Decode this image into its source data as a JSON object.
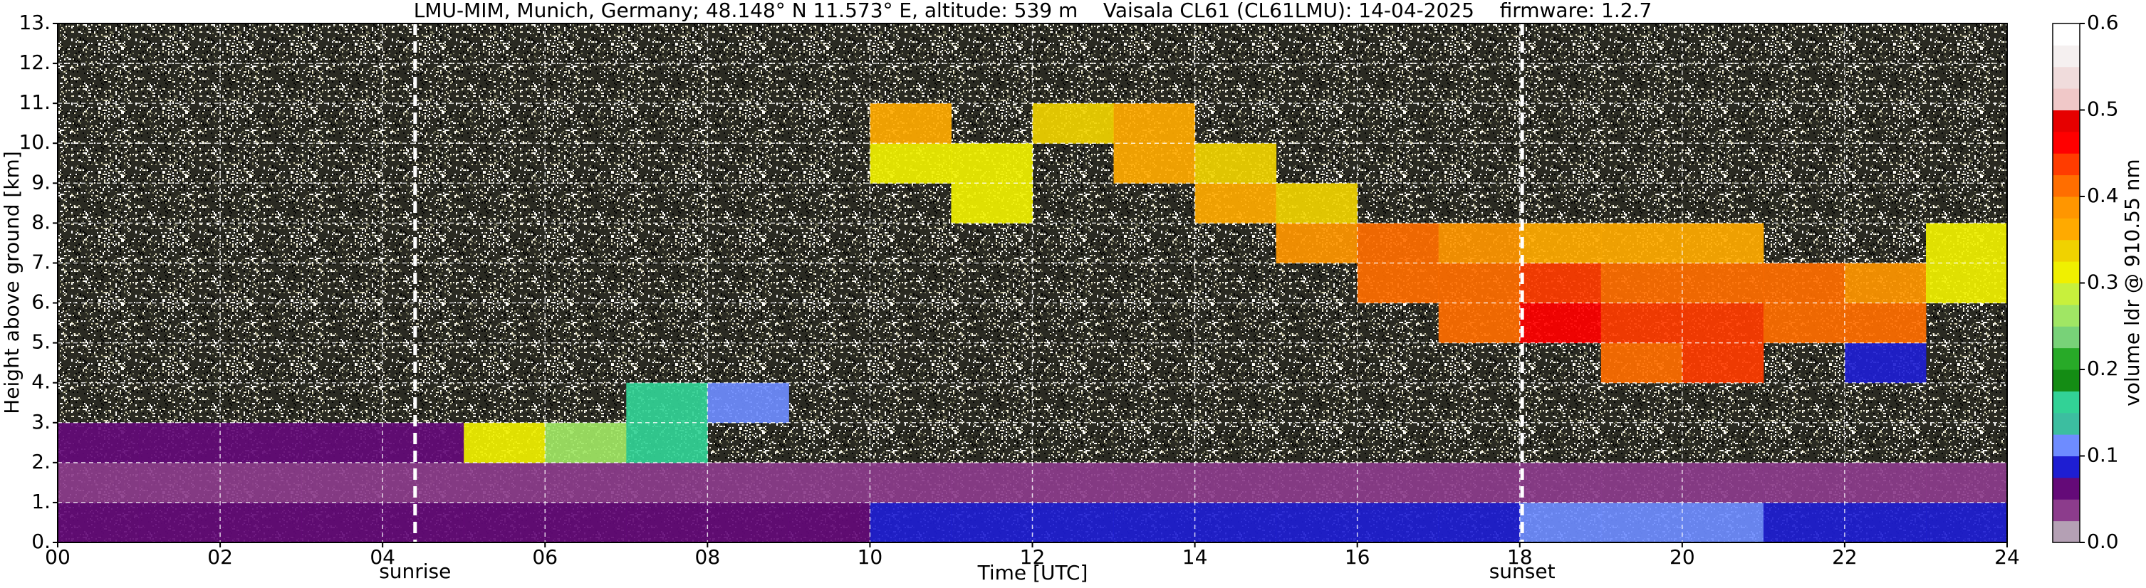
{
  "chart_data": {
    "type": "heatmap",
    "title": "LMU-MIM, Munich, Germany; 48.148° N 11.573° E, altitude: 539 m    Vaisala CL61 (CL61LMU): 14-04-2025    firmware: 1.2.7",
    "x_label": "Time [UTC]",
    "y_label": "Height above ground [km]",
    "colorbar_label": "volume ldr @ 910.55 nm",
    "xlim": [
      0,
      24
    ],
    "xticks": [
      {
        "value": 0,
        "label": "00"
      },
      {
        "value": 2,
        "label": "02"
      },
      {
        "value": 4,
        "label": "04"
      },
      {
        "value": 6,
        "label": "06"
      },
      {
        "value": 8,
        "label": "08"
      },
      10,
      12,
      14,
      16,
      18,
      20,
      22,
      24
    ],
    "ylim": [
      0,
      13
    ],
    "yticks": [
      {
        "value": 0,
        "label": "0."
      },
      {
        "value": 1,
        "label": "1."
      },
      {
        "value": 2,
        "label": "2."
      },
      {
        "value": 3,
        "label": "3."
      },
      {
        "value": 4,
        "label": "4."
      },
      {
        "value": 5,
        "label": "5."
      },
      {
        "value": 6,
        "label": "6."
      },
      {
        "value": 7,
        "label": "7."
      },
      {
        "value": 8,
        "label": "8."
      },
      {
        "value": 9,
        "label": "9."
      },
      {
        "value": 10,
        "label": "10."
      },
      {
        "value": 11,
        "label": "11."
      },
      {
        "value": 12,
        "label": "12."
      },
      {
        "value": 13,
        "label": "13."
      }
    ],
    "clim": [
      0,
      0.6
    ],
    "cticks": [
      {
        "value": 0,
        "label": "0.0"
      },
      0.1,
      0.2,
      0.3,
      0.4,
      0.5,
      0.6
    ],
    "colormap": [
      "#b4a0b4",
      "#8c3c8c",
      "#640a78",
      "#1e1ed2",
      "#6e8cff",
      "#3cbea0",
      "#32d296",
      "#148c14",
      "#28aa28",
      "#78d278",
      "#a0e664",
      "#c8f03c",
      "#f0f000",
      "#f0d200",
      "#ffaa00",
      "#ff9600",
      "#ff6e00",
      "#ff3c00",
      "#ff0000",
      "#e60000",
      "#f0c8c8",
      "#f0dcdc",
      "#f5f0f0",
      "#ffffff"
    ],
    "grid": true,
    "annotations": [
      {
        "text": "sunrise",
        "x": 4.4
      },
      {
        "text": "sunset",
        "x": 18.03
      }
    ],
    "z": [
      [
        0.07,
        0.07,
        0.07,
        0.07,
        0.07,
        0.07,
        0.07,
        0.07,
        0.07,
        0.07,
        0.08,
        0.08,
        0.08,
        0.08,
        0.08,
        0.08,
        0.08,
        0.09,
        0.12,
        0.12,
        0.12,
        0.09,
        0.08,
        0.08
      ],
      [
        0.03,
        0.03,
        0.03,
        0.03,
        0.03,
        0.03,
        0.03,
        0.03,
        0.03,
        0.03,
        0.03,
        0.03,
        0.03,
        0.03,
        0.03,
        0.03,
        0.03,
        0.03,
        0.03,
        0.03,
        0.03,
        0.03,
        0.03,
        0.03
      ],
      [
        0.05,
        0.05,
        0.05,
        0.05,
        0.05,
        0.3,
        0.25,
        0.15,
        null,
        null,
        null,
        null,
        null,
        null,
        null,
        null,
        null,
        null,
        null,
        null,
        null,
        null,
        null,
        null
      ],
      [
        null,
        null,
        null,
        null,
        null,
        null,
        null,
        0.15,
        0.12,
        null,
        null,
        null,
        null,
        null,
        null,
        null,
        null,
        null,
        null,
        null,
        null,
        null,
        null,
        null
      ],
      [
        null,
        null,
        null,
        null,
        null,
        null,
        null,
        null,
        null,
        null,
        null,
        null,
        null,
        null,
        null,
        null,
        null,
        null,
        null,
        0.42,
        0.44,
        null,
        0.08,
        null
      ],
      [
        null,
        null,
        null,
        null,
        null,
        null,
        null,
        null,
        null,
        null,
        null,
        null,
        null,
        null,
        null,
        null,
        null,
        0.42,
        0.45,
        0.44,
        0.43,
        0.42,
        0.4,
        null
      ],
      [
        null,
        null,
        null,
        null,
        null,
        null,
        null,
        null,
        null,
        null,
        null,
        null,
        null,
        null,
        null,
        null,
        0.4,
        0.42,
        0.43,
        0.42,
        0.41,
        0.4,
        0.38,
        0.3
      ],
      [
        null,
        null,
        null,
        null,
        null,
        null,
        null,
        null,
        null,
        null,
        null,
        null,
        null,
        null,
        null,
        0.38,
        0.4,
        0.38,
        0.36,
        0.35,
        0.36,
        null,
        null,
        0.32
      ],
      [
        null,
        null,
        null,
        null,
        null,
        null,
        null,
        null,
        null,
        null,
        null,
        0.3,
        null,
        null,
        0.35,
        0.34,
        null,
        null,
        null,
        null,
        null,
        null,
        null,
        null
      ],
      [
        null,
        null,
        null,
        null,
        null,
        null,
        null,
        null,
        null,
        null,
        0.32,
        0.3,
        null,
        0.35,
        0.33,
        null,
        null,
        null,
        null,
        null,
        null,
        null,
        null,
        null
      ],
      [
        null,
        null,
        null,
        null,
        null,
        null,
        null,
        null,
        null,
        null,
        0.35,
        null,
        0.33,
        0.36,
        null,
        null,
        null,
        null,
        null,
        null,
        null,
        null,
        null,
        null
      ],
      [
        null,
        null,
        null,
        null,
        null,
        null,
        null,
        null,
        null,
        null,
        null,
        null,
        null,
        null,
        null,
        null,
        null,
        null,
        null,
        null,
        null,
        null,
        null,
        null
      ],
      [
        null,
        null,
        null,
        null,
        null,
        null,
        null,
        null,
        null,
        null,
        null,
        null,
        null,
        null,
        null,
        null,
        null,
        null,
        null,
        null,
        null,
        null,
        null,
        null
      ]
    ]
  }
}
